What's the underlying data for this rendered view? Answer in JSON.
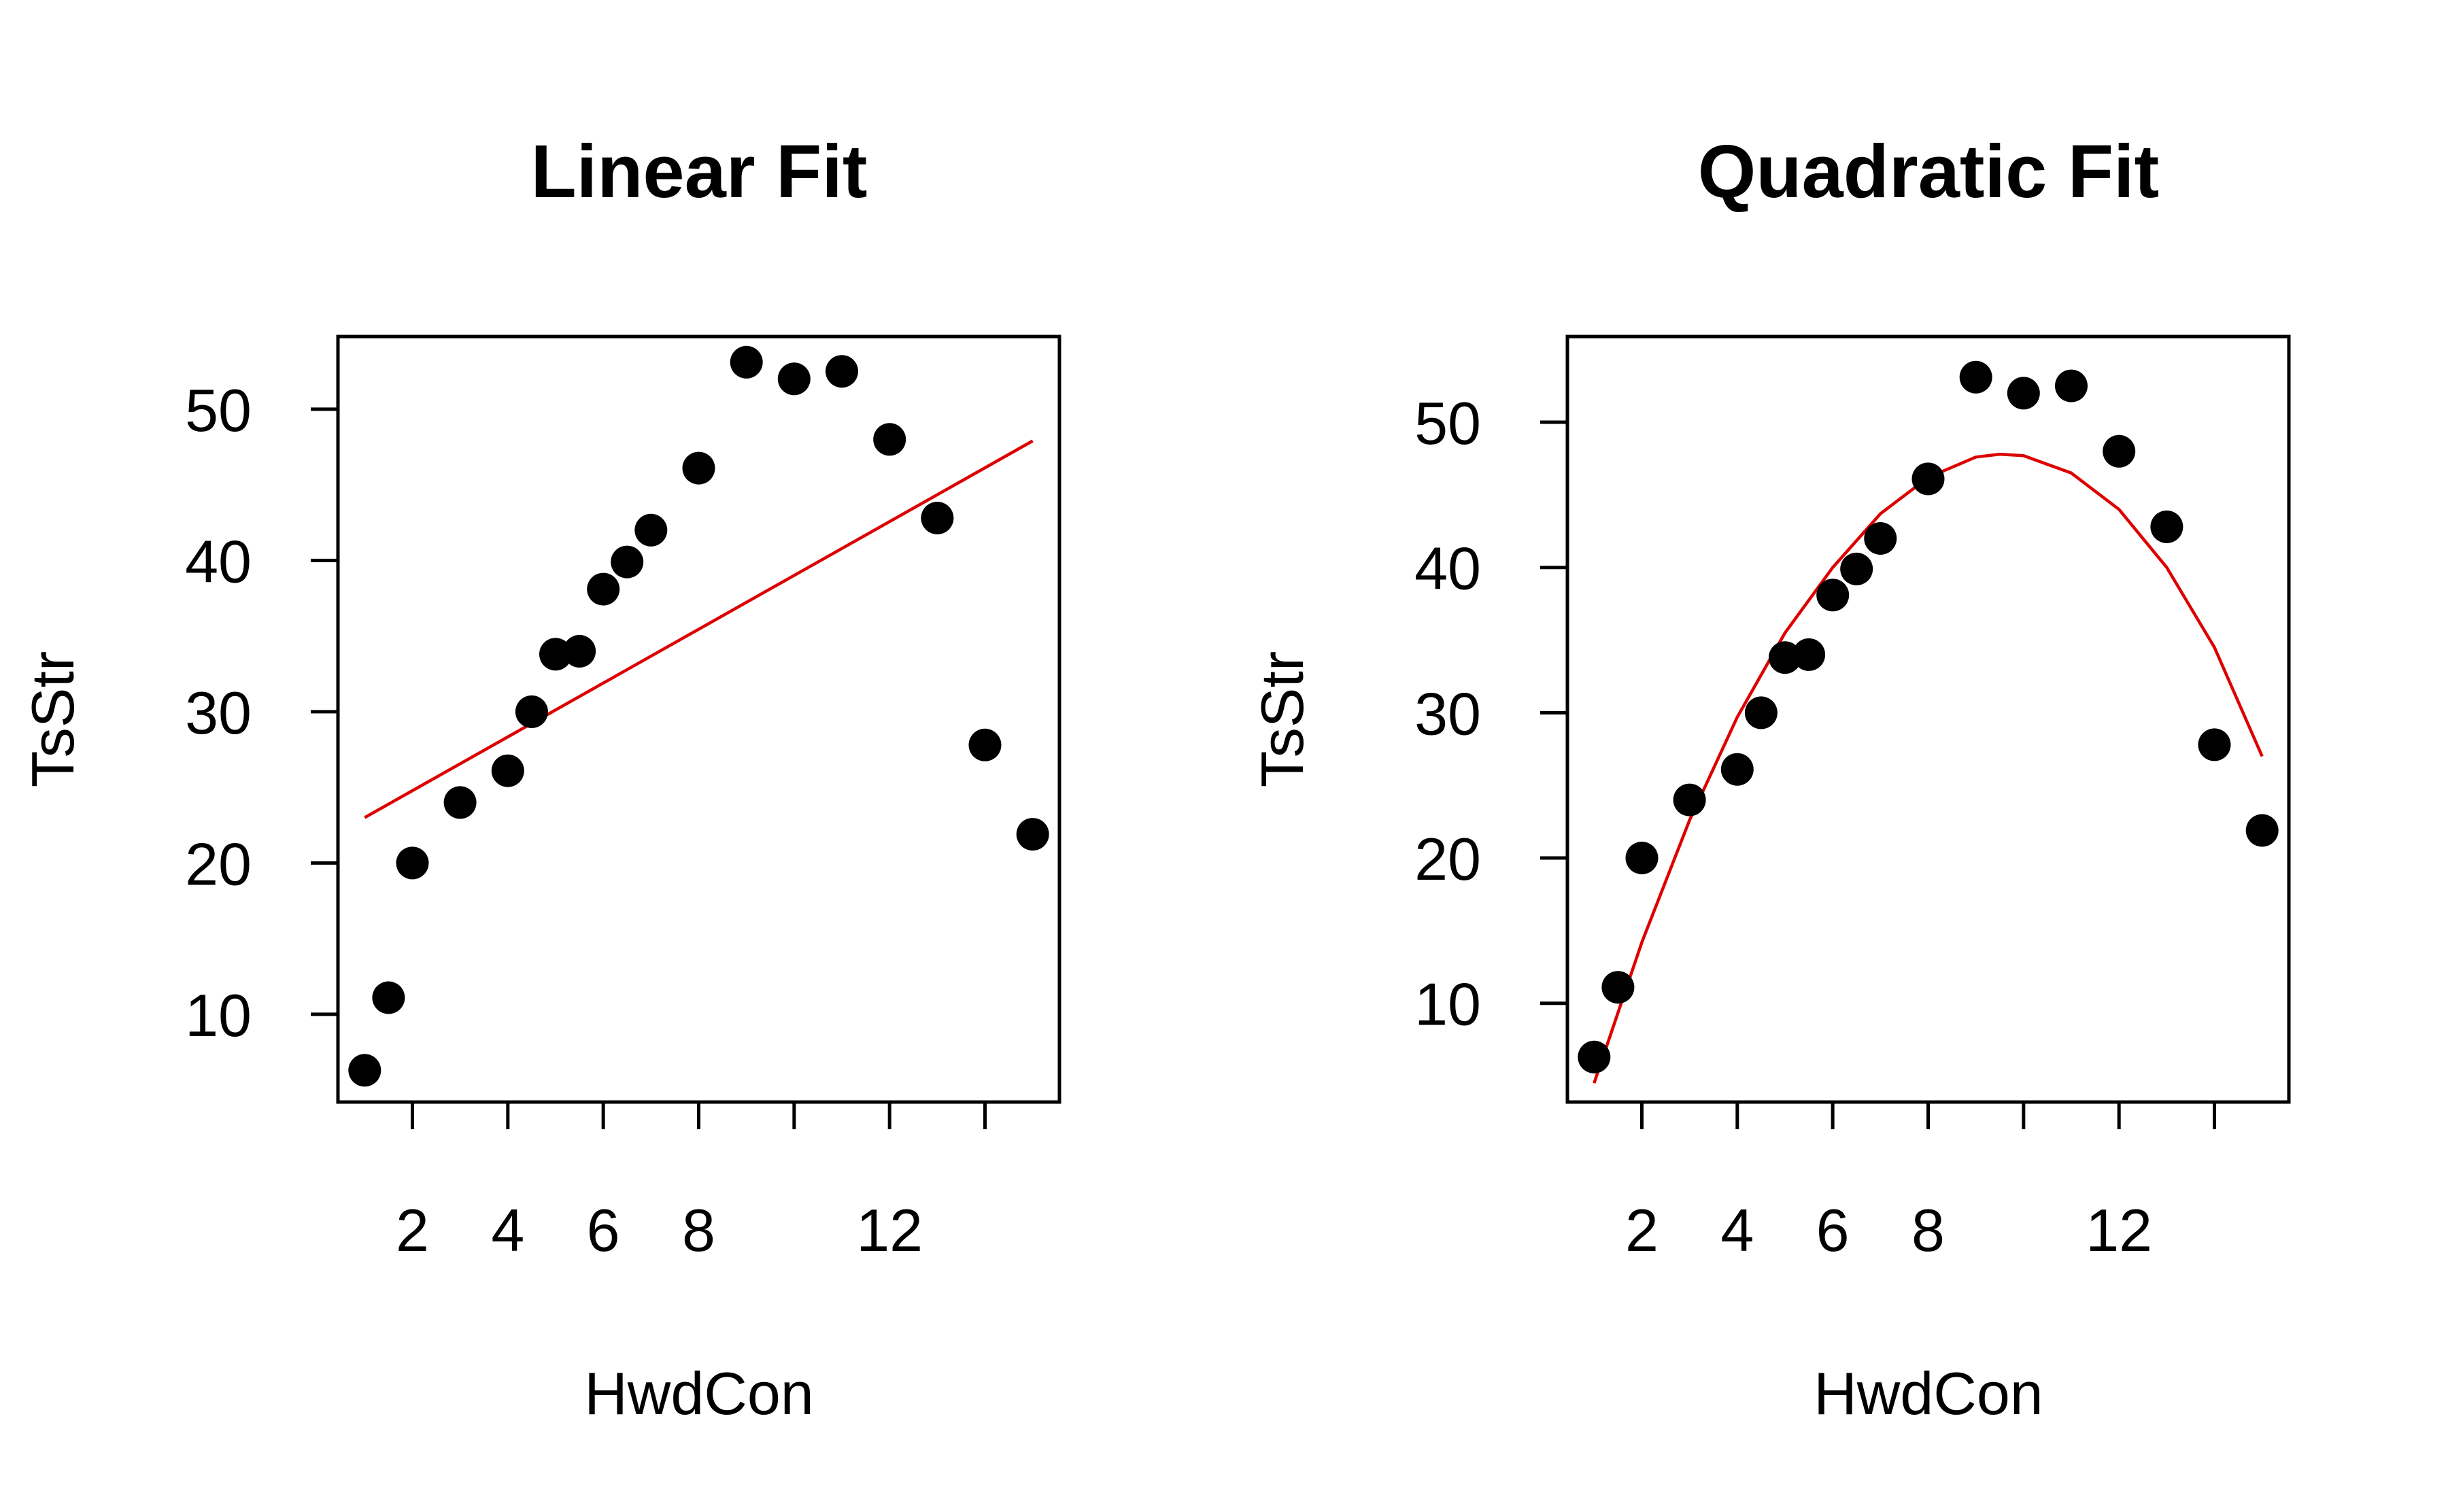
{
  "chart_data": [
    {
      "type": "scatter",
      "title": "Linear Fit",
      "xlabel": "HwdCon",
      "ylabel": "TsStr",
      "xlim": [
        0.44,
        15.56
      ],
      "ylim": [
        4.2,
        54.8
      ],
      "xticks": [
        2,
        4,
        6,
        8,
        10,
        12,
        14
      ],
      "xtick_labels": [
        "2",
        "4",
        "6",
        "8",
        "",
        "12",
        ""
      ],
      "yticks": [
        10,
        20,
        30,
        40,
        50
      ],
      "ytick_labels": [
        "10",
        "20",
        "30",
        "40",
        "50"
      ],
      "grid": false,
      "legend": "none",
      "point_color": "#000000",
      "fit_color": "#dd0000",
      "points": {
        "x": [
          1,
          1.5,
          2,
          3,
          4,
          4.5,
          5,
          5.5,
          6,
          6.5,
          7,
          8,
          9,
          10,
          11,
          12,
          13,
          14,
          15
        ],
        "y": [
          6.3,
          11.1,
          20.0,
          24.0,
          26.1,
          30.0,
          33.8,
          34.0,
          38.1,
          39.9,
          42.0,
          46.1,
          53.1,
          52.0,
          52.5,
          48.0,
          42.8,
          27.8,
          21.9
        ]
      },
      "fit": {
        "kind": "linear",
        "x": [
          1,
          15
        ],
        "y": [
          23.0,
          47.9
        ]
      }
    },
    {
      "type": "scatter",
      "title": "Quadratic Fit",
      "xlabel": "HwdCon",
      "ylabel": "TsStr",
      "xlim": [
        0.44,
        15.56
      ],
      "ylim": [
        3.2,
        55.9
      ],
      "xticks": [
        2,
        4,
        6,
        8,
        10,
        12,
        14
      ],
      "xtick_labels": [
        "2",
        "4",
        "6",
        "8",
        "",
        "12",
        ""
      ],
      "yticks": [
        10,
        20,
        30,
        40,
        50
      ],
      "ytick_labels": [
        "10",
        "20",
        "30",
        "40",
        "50"
      ],
      "grid": false,
      "legend": "none",
      "point_color": "#000000",
      "fit_color": "#dd0000",
      "points": {
        "x": [
          1,
          1.5,
          2,
          3,
          4,
          4.5,
          5,
          5.5,
          6,
          6.5,
          7,
          8,
          9,
          10,
          11,
          12,
          13,
          14,
          15
        ],
        "y": [
          6.3,
          11.1,
          20.0,
          24.0,
          26.1,
          30.0,
          33.8,
          34.0,
          38.1,
          39.9,
          42.0,
          46.1,
          53.1,
          52.0,
          52.5,
          48.0,
          42.8,
          27.8,
          21.9
        ]
      },
      "fit": {
        "kind": "quadratic",
        "x": [
          1,
          2,
          3,
          4,
          5,
          6,
          7,
          8,
          9,
          9.5,
          10,
          11,
          12,
          13,
          14,
          15
        ],
        "y": [
          4.5,
          14.2,
          22.6,
          29.7,
          35.5,
          40.0,
          43.7,
          46.2,
          47.6,
          47.8,
          47.7,
          46.5,
          44.0,
          40.0,
          34.5,
          27.0
        ]
      }
    }
  ]
}
